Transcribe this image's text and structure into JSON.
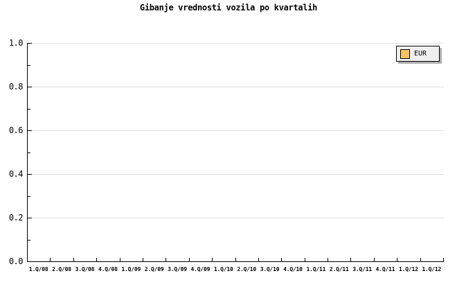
{
  "chart_data": {
    "type": "line",
    "title": "Gibanje vrednosti vozila po kvartalih",
    "xlabel": "",
    "ylabel": "",
    "categories": [
      "1.Q/08",
      "2.Q/08",
      "3.Q/08",
      "4.Q/08",
      "1.Q/09",
      "2.Q/09",
      "3.Q/09",
      "4.Q/09",
      "1.Q/10",
      "2.Q/10",
      "3.Q/10",
      "4.Q/10",
      "1.Q/11",
      "2.Q/11",
      "3.Q/11",
      "4.Q/11",
      "1.Q/12",
      "1.Q/12"
    ],
    "series": [
      {
        "name": "EUR",
        "color": "#fac564",
        "values": []
      }
    ],
    "ylim": [
      0.0,
      1.0
    ],
    "y_ticks": [
      0.0,
      0.2,
      0.4,
      0.6,
      0.8,
      1.0
    ],
    "y_tick_labels": [
      "0.0",
      "0.2",
      "0.4",
      "0.6",
      "0.8",
      "1.0"
    ],
    "y_minor_tick_step": 0.1,
    "grid": "horizontal-major-only",
    "legend_position": "top-right",
    "plot_background": "#ffffff",
    "colors": {
      "axis": "#000000",
      "gridline": "#e0e0e0",
      "legend_background": "#efefef",
      "legend_border": "#000000",
      "legend_shadow": "#b0b0b0",
      "text": "#000000"
    }
  }
}
